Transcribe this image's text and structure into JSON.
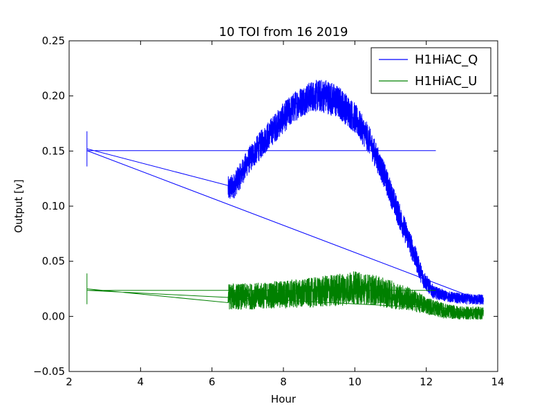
{
  "chart_data": {
    "type": "line",
    "title": "10 TOI from 16 2019",
    "xlabel": "Hour",
    "ylabel": "Output [v]",
    "xlim": [
      2,
      14
    ],
    "ylim": [
      -0.05,
      0.25
    ],
    "x_ticks": [
      "2",
      "4",
      "6",
      "8",
      "10",
      "12",
      "14"
    ],
    "y_ticks": [
      "−0.05",
      "0.00",
      "0.05",
      "0.10",
      "0.15",
      "0.20",
      "0.25"
    ],
    "grid": false,
    "legend_position": "top-right",
    "series": [
      {
        "name": "H1HiAC_Q",
        "color": "#0000ff",
        "x": [
          2.5,
          6.45,
          6.6,
          6.8,
          7.0,
          7.3,
          7.6,
          8.0,
          8.4,
          8.8,
          9.2,
          9.6,
          10.0,
          10.4,
          10.8,
          11.2,
          11.6,
          11.9,
          12.2,
          12.6,
          13.0,
          13.6
        ],
        "y": [
          0.152,
          0.115,
          0.118,
          0.128,
          0.14,
          0.153,
          0.165,
          0.18,
          0.193,
          0.2,
          0.2,
          0.193,
          0.18,
          0.16,
          0.13,
          0.095,
          0.062,
          0.035,
          0.022,
          0.018,
          0.016,
          0.015
        ],
        "noise": [
          0.016,
          0.012,
          0.012,
          0.012,
          0.012,
          0.013,
          0.013,
          0.014,
          0.014,
          0.014,
          0.016,
          0.015,
          0.014,
          0.013,
          0.012,
          0.012,
          0.011,
          0.009,
          0.006,
          0.005,
          0.005,
          0.005
        ]
      },
      {
        "name": "H1HiAC_U",
        "color": "#008000",
        "x": [
          2.5,
          6.45,
          6.6,
          7.0,
          7.5,
          8.0,
          8.5,
          9.0,
          9.5,
          10.0,
          10.5,
          11.0,
          11.5,
          12.0,
          12.5,
          13.0,
          13.6
        ],
        "y": [
          0.025,
          0.018,
          0.018,
          0.018,
          0.019,
          0.02,
          0.021,
          0.022,
          0.024,
          0.026,
          0.024,
          0.02,
          0.016,
          0.01,
          0.005,
          0.003,
          0.003
        ],
        "noise": [
          0.014,
          0.012,
          0.012,
          0.012,
          0.012,
          0.013,
          0.013,
          0.014,
          0.015,
          0.015,
          0.014,
          0.013,
          0.011,
          0.008,
          0.007,
          0.006,
          0.006
        ]
      }
    ]
  }
}
